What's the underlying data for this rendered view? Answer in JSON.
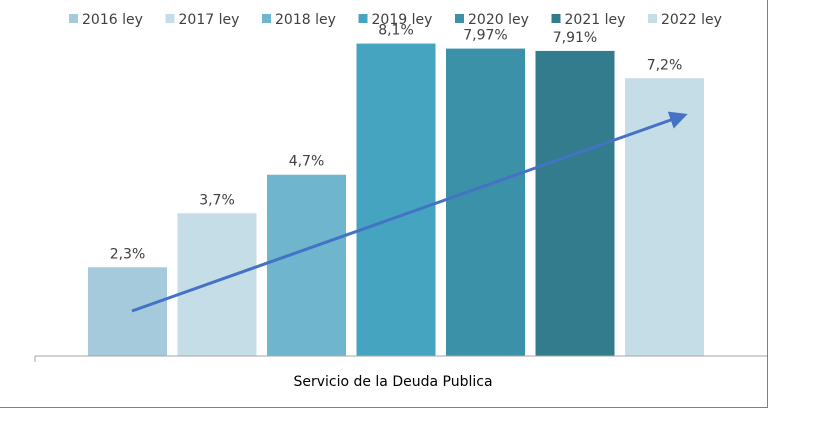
{
  "chart_data": {
    "type": "bar",
    "categories": [
      "Servicio de la Deuda Publica"
    ],
    "ylim": [
      0,
      8.4
    ],
    "series": [
      {
        "name": "2016 ley",
        "value": 2.3,
        "label": "2,3%",
        "color": "#a4cadb"
      },
      {
        "name": "2017 ley",
        "value": 3.7,
        "label": "3,7%",
        "color": "#c5dde7"
      },
      {
        "name": "2018 ley",
        "value": 4.7,
        "label": "4,7%",
        "color": "#6fb5cd"
      },
      {
        "name": "2019 ley",
        "value": 8.1,
        "label": "8,1%",
        "color": "#45a4c0"
      },
      {
        "name": "2020 ley",
        "value": 7.97,
        "label": "7,97%",
        "color": "#3b91a8"
      },
      {
        "name": "2021 ley",
        "value": 7.91,
        "label": "7,91%",
        "color": "#337c8e"
      },
      {
        "name": "2022 ley",
        "value": 7.2,
        "label": "7,2%",
        "color": "#c5dde7"
      }
    ],
    "trend_arrow_color": "#4472c4",
    "legend_position": "top",
    "grid": false
  }
}
